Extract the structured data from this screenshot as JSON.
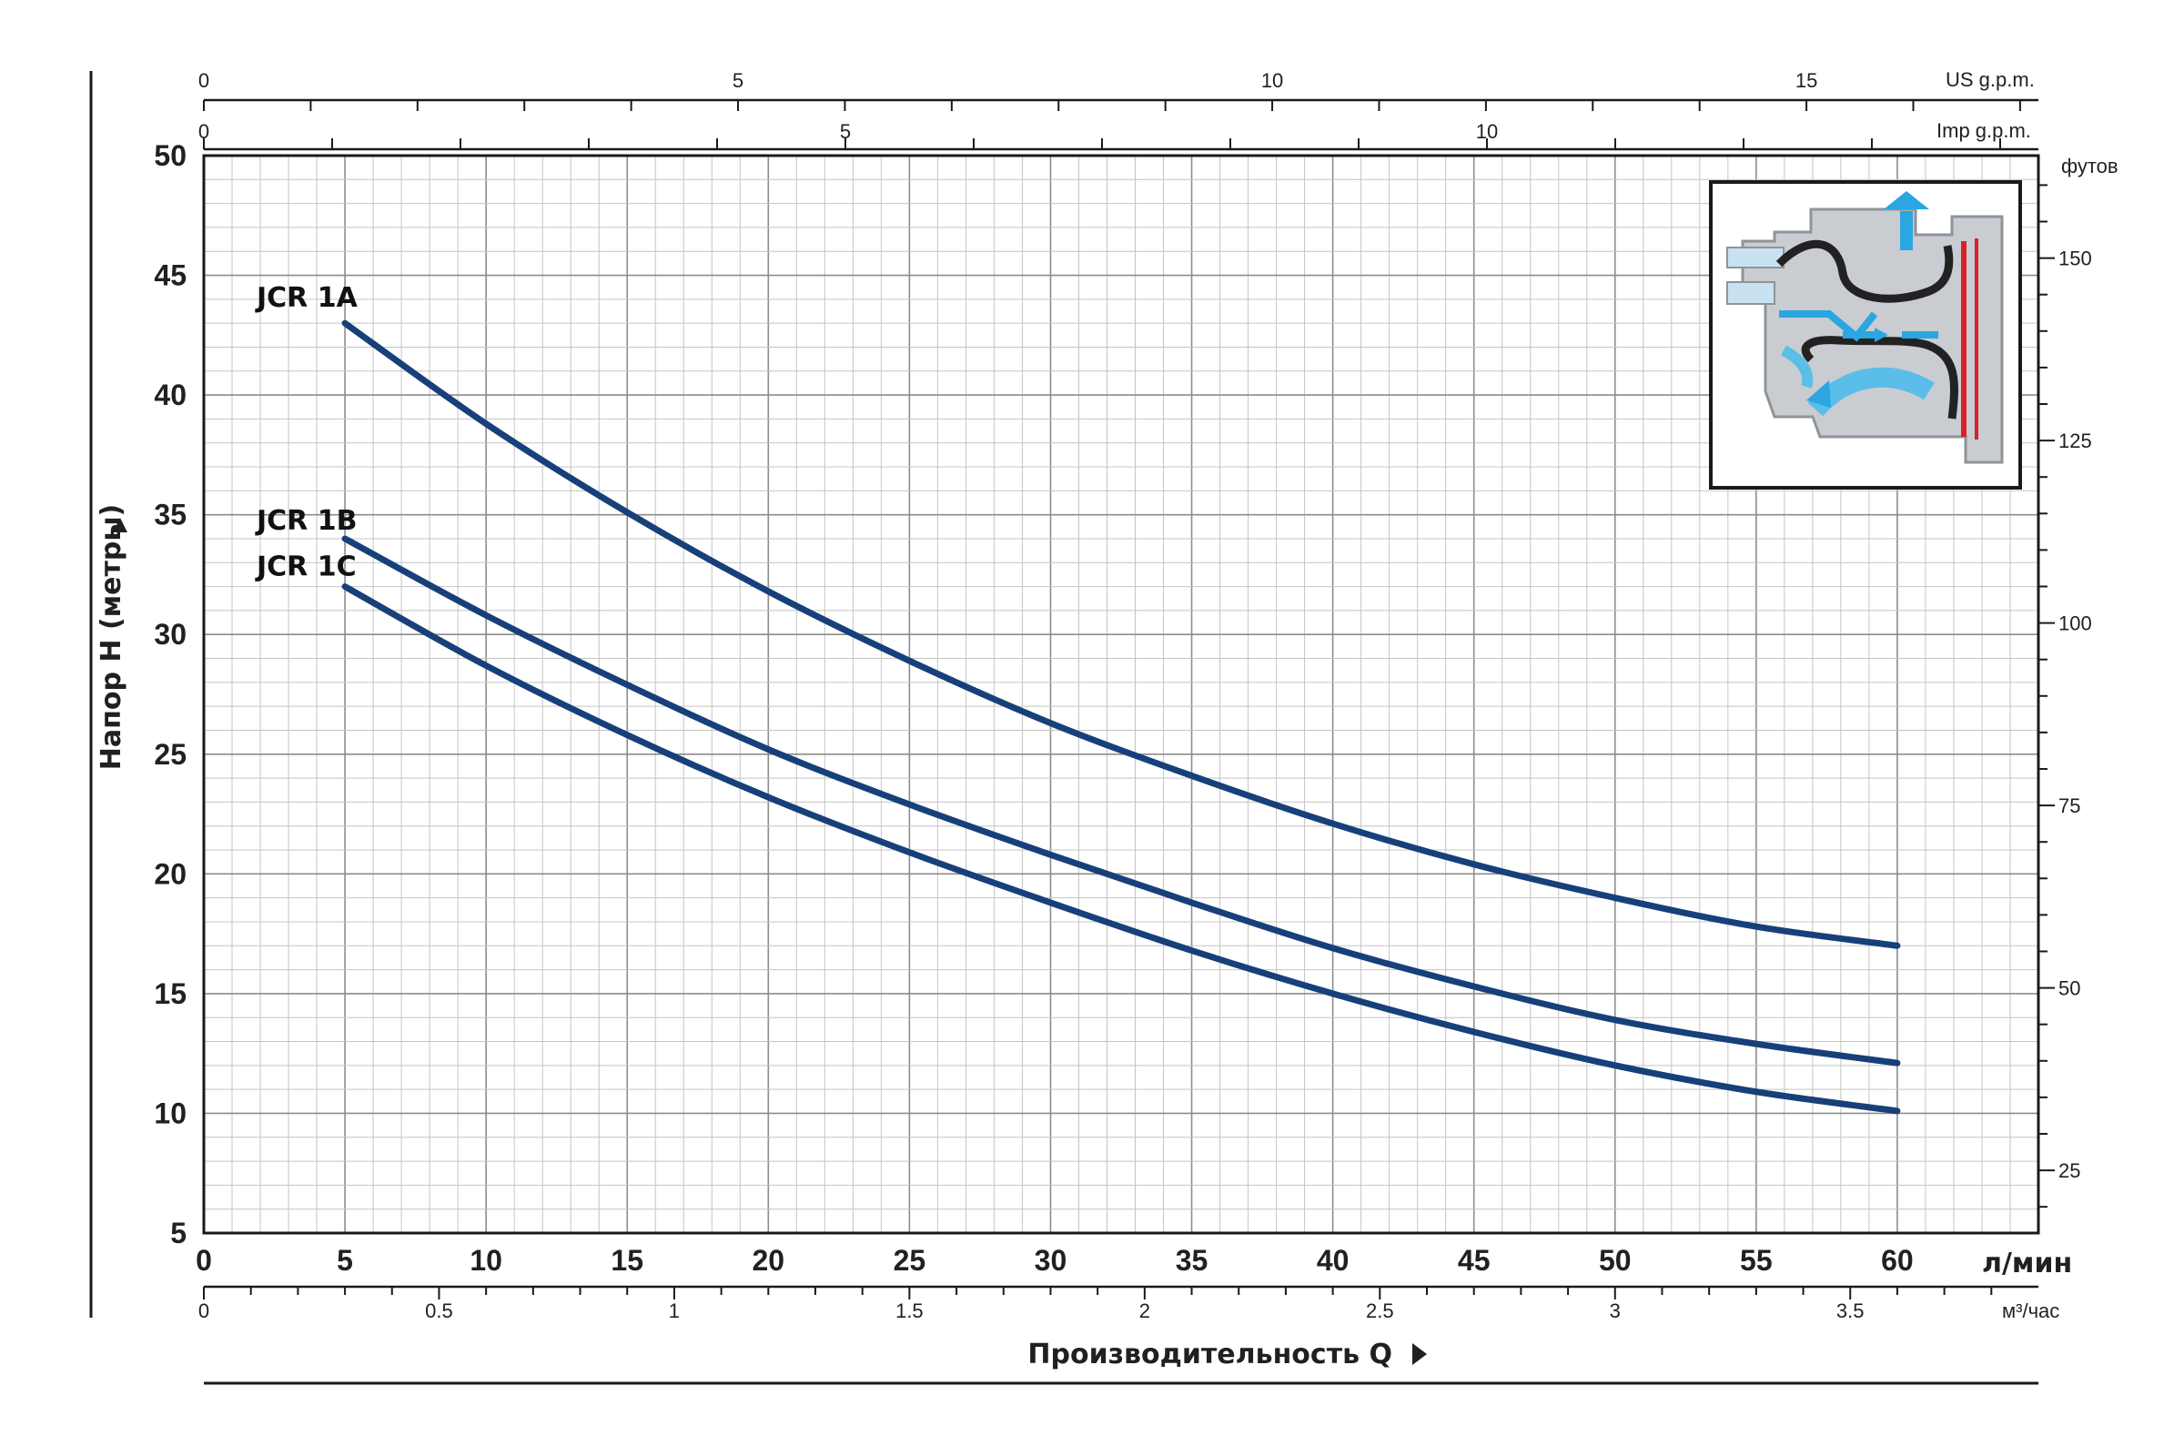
{
  "chart_data": {
    "type": "line",
    "xlabel": "Производительность Q",
    "ylabel": "Напор H (метры)",
    "x_unit": "л/мин",
    "x2_unit": "м³/час",
    "top_unit_us": "US g.p.m.",
    "top_unit_imp": "Imp g.p.m.",
    "right_unit": "футов",
    "xlim": [
      0,
      65
    ],
    "ylim": [
      5,
      50
    ],
    "x_ticks": [
      0,
      5,
      10,
      15,
      20,
      25,
      30,
      35,
      40,
      45,
      50,
      55,
      60
    ],
    "y_ticks": [
      5,
      10,
      15,
      20,
      25,
      30,
      35,
      40,
      45,
      50
    ],
    "m3h_ticks": [
      "0",
      "0.5",
      "1",
      "1.5",
      "2",
      "2.5",
      "3",
      "3.5"
    ],
    "us_gpm_ticks": [
      "0",
      "5",
      "10",
      "15"
    ],
    "imp_gpm_ticks": [
      "0",
      "5",
      "10"
    ],
    "feet_ticks": [
      "25",
      "50",
      "75",
      "100",
      "125",
      "150"
    ],
    "grid": true,
    "line_color": "#17407a",
    "series": [
      {
        "name": "JCR 1A",
        "x": [
          5,
          10,
          15,
          20,
          25,
          30,
          35,
          40,
          45,
          50,
          55,
          60
        ],
        "values": [
          43,
          38.8,
          35.1,
          31.8,
          28.9,
          26.3,
          24.1,
          22.1,
          20.4,
          19.0,
          17.8,
          17.0
        ]
      },
      {
        "name": "JCR 1B",
        "x": [
          5,
          10,
          15,
          20,
          25,
          30,
          35,
          40,
          45,
          50,
          55,
          60
        ],
        "values": [
          34,
          30.8,
          27.9,
          25.2,
          22.9,
          20.8,
          18.8,
          16.9,
          15.3,
          13.9,
          12.9,
          12.1
        ]
      },
      {
        "name": "JCR 1C",
        "x": [
          5,
          10,
          15,
          20,
          25,
          30,
          35,
          40,
          45,
          50,
          55,
          60
        ],
        "values": [
          32,
          28.7,
          25.8,
          23.2,
          20.9,
          18.8,
          16.8,
          15.0,
          13.4,
          12.0,
          10.9,
          10.1
        ]
      }
    ]
  }
}
